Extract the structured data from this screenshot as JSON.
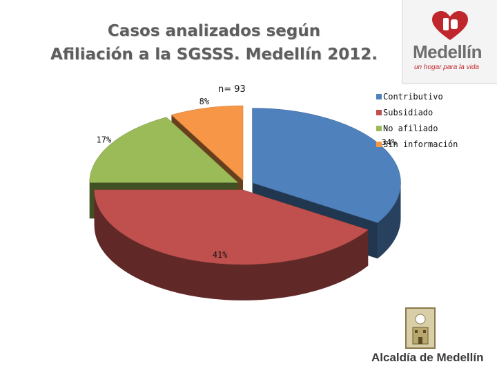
{
  "title_line1": "Casos analizados según",
  "title_line2": "Afiliación a la SGSSS. Medellín 2012.",
  "n_label": "n= 93",
  "logo": {
    "wordmark": "Medellín",
    "tagline": "un hogar para la vida",
    "icon": "medellin-heart-logo-icon"
  },
  "footer": {
    "text": "Alcaldía de Medellín",
    "icon": "coat-of-arms-icon"
  },
  "colors": {
    "contributivo": "#4f81bd",
    "subsidiado": "#c0504d",
    "no_afiliado": "#9bbb59",
    "sin_informacion": "#f79646"
  },
  "chart_data": {
    "type": "pie",
    "style": "3d-exploded",
    "title": "Casos analizados según Afiliación a la SGSSS. Medellín 2012.",
    "annotation": "n= 93",
    "legend_position": "right",
    "slices": [
      {
        "name": "Contributivo",
        "value": 34,
        "label": "34%",
        "color": "#4f81bd"
      },
      {
        "name": "Subsidiado",
        "value": 41,
        "label": "41%",
        "color": "#c0504d"
      },
      {
        "name": "No afiliado",
        "value": 17,
        "label": "17%",
        "color": "#9bbb59"
      },
      {
        "name": "Sin información",
        "value": 8,
        "label": "8%",
        "color": "#f79646"
      }
    ]
  }
}
